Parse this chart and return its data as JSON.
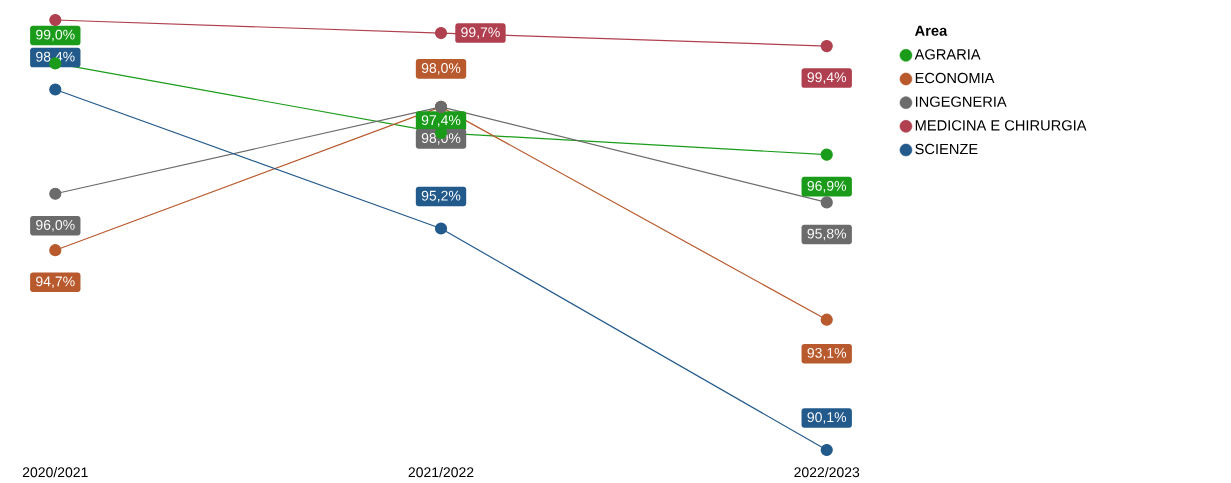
{
  "chart_data": {
    "type": "line",
    "legend_title": "Area",
    "categories": [
      "2020/2021",
      "2021/2022",
      "2022/2023"
    ],
    "series": [
      {
        "name": "AGRARIA",
        "color": "#1a9c1a",
        "values": [
          99.0,
          97.4,
          96.9
        ],
        "value_labels": [
          "99,0%",
          "97,4%",
          "96,9%"
        ]
      },
      {
        "name": "ECONOMIA",
        "color": "#b85a2e",
        "values": [
          94.7,
          98.0,
          93.1
        ],
        "value_labels": [
          "94,7%",
          "98,0%",
          "93,1%"
        ]
      },
      {
        "name": "INGEGNERIA",
        "color": "#6b6b6b",
        "values": [
          96.0,
          98.0,
          95.8
        ],
        "value_labels": [
          "96,0%",
          "98,0%",
          "95,8%"
        ]
      },
      {
        "name": "MEDICINA E CHIRURGIA",
        "color": "#b0404f",
        "values": [
          100.0,
          99.7,
          99.4
        ],
        "value_labels": [
          null,
          "99,7%",
          "99,4%"
        ]
      },
      {
        "name": "SCIENZE",
        "color": "#235a8c",
        "values": [
          98.4,
          95.2,
          90.1
        ],
        "value_labels": [
          "98,4%",
          "95,2%",
          "90,1%"
        ]
      }
    ],
    "legend": "right",
    "marker": "circle",
    "line_style": "solid"
  }
}
